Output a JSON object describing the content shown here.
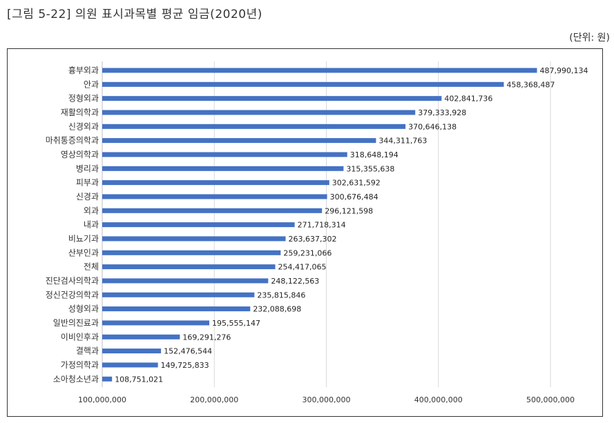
{
  "figure": {
    "title": "[그림 5-22] 의원 표시과목별 평균 임금(2020년)",
    "unit": "(단위: 원)"
  },
  "chart_data": {
    "type": "bar",
    "orientation": "horizontal",
    "title": "[그림 5-22] 의원 표시과목별 평균 임금(2020년)",
    "xlabel": "",
    "ylabel": "",
    "unit": "(단위: 원)",
    "xlim": [
      100000000,
      500000000
    ],
    "ticks": [
      100000000,
      200000000,
      300000000,
      400000000,
      500000000
    ],
    "tick_labels": [
      "100,000,000",
      "200,000,000",
      "300,000,000",
      "400,000,000",
      "500,000,000"
    ],
    "grid": "vertical",
    "bar_color": "#4472c4",
    "categories": [
      "흉부외과",
      "안과",
      "정형외과",
      "재활의학과",
      "신경외과",
      "마취통증의학과",
      "영상의학과",
      "병리과",
      "피부과",
      "신경과",
      "외과",
      "내과",
      "비뇨기과",
      "산부인과",
      "전체",
      "진단검사의학과",
      "정신건강의학과",
      "성형외과",
      "일반의진료과",
      "이비인후과",
      "결핵과",
      "가정의학과",
      "소아청소년과"
    ],
    "values": [
      487990134,
      458368487,
      402841736,
      379333928,
      370646138,
      344311763,
      318648194,
      315355638,
      302631592,
      300676484,
      296121598,
      271718314,
      263637302,
      259231066,
      254417065,
      248122563,
      235815846,
      232088698,
      195555147,
      169291276,
      152476544,
      149725833,
      108751021
    ],
    "value_labels": [
      "487,990,134",
      "458,368,487",
      "402,841,736",
      "379,333,928",
      "370,646,138",
      "344,311,763",
      "318,648,194",
      "315,355,638",
      "302,631,592",
      "300,676,484",
      "296,121,598",
      "271,718,314",
      "263,637,302",
      "259,231,066",
      "254,417,065",
      "248,122,563",
      "235,815,846",
      "232,088,698",
      "195,555,147",
      "169,291,276",
      "152,476,544",
      "149,725,833",
      "108,751,021"
    ]
  }
}
